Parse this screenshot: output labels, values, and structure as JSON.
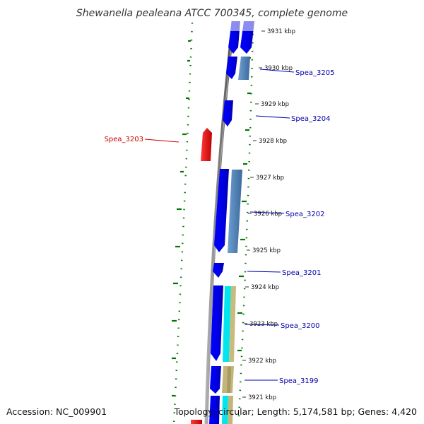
{
  "title": "Shewanella pealeana ATCC 700345, complete genome",
  "footer": {
    "accession": "Accession: NC_009901",
    "summary": "Topology: circular; Length: 5,174,581 bp; Genes: 4,420"
  },
  "ticks": [
    {
      "label": "3931 kbp",
      "value": 3931
    },
    {
      "label": "3930 kbp",
      "value": 3930
    },
    {
      "label": "3929 kbp",
      "value": 3929
    },
    {
      "label": "3928 kbp",
      "value": 3928
    },
    {
      "label": "3927 kbp",
      "value": 3927
    },
    {
      "label": "3926 kbp",
      "value": 3926
    },
    {
      "label": "3925 kbp",
      "value": 3925
    },
    {
      "label": "3924 kbp",
      "value": 3924
    },
    {
      "label": "3923 kbp",
      "value": 3923
    },
    {
      "label": "3922 kbp",
      "value": 3922
    },
    {
      "label": "3921 kbp",
      "value": 3921
    }
  ],
  "gene_labels": [
    {
      "name": "Spea_3205",
      "color": "#0000aa"
    },
    {
      "name": "Spea_3204",
      "color": "#0000aa"
    },
    {
      "name": "Spea_3203",
      "color": "#cc0000"
    },
    {
      "name": "Spea_3202",
      "color": "#0000aa"
    },
    {
      "name": "Spea_3201",
      "color": "#0000aa"
    },
    {
      "name": "Spea_3200",
      "color": "#0000aa"
    },
    {
      "name": "Spea_3199",
      "color": "#0000aa"
    }
  ],
  "colors": {
    "forward_cds": "#0000ee",
    "reverse_cds": "#ee0000",
    "steelblue_feature": "#4a7fb5",
    "cyan_feature": "#00e5ee",
    "khaki_feature": "#c2b57a",
    "backbone": "#808080",
    "gc_skew_dots": "#007700",
    "label_line_forward": "#0000cc",
    "label_line_reverse": "#cc0000"
  }
}
